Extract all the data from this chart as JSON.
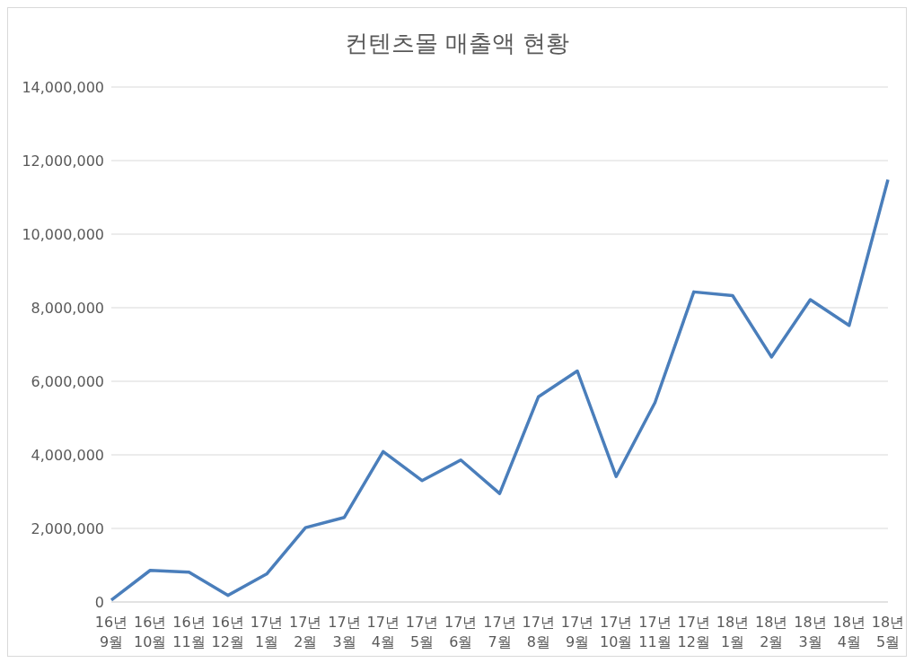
{
  "chart_data": {
    "type": "line",
    "title": "컨텐츠몰 매출액 현황",
    "categories": [
      "16년\n9월",
      "16년\n10월",
      "16년\n11월",
      "16년\n12월",
      "17년\n1월",
      "17년\n2월",
      "17년\n3월",
      "17년\n4월",
      "17년\n5월",
      "17년\n6월",
      "17년\n7월",
      "17년\n8월",
      "17년\n9월",
      "17년\n10월",
      "17년\n11월",
      "17년\n12월",
      "18년\n1월",
      "18년\n2월",
      "18년\n3월",
      "18년\n4월",
      "18년\n5월"
    ],
    "series": [
      {
        "color": "#4a7ebb",
        "values": [
          50000,
          860000,
          810000,
          180000,
          760000,
          2020000,
          2300000,
          4090000,
          3300000,
          3860000,
          2950000,
          5580000,
          6280000,
          3410000,
          5420000,
          8430000,
          8330000,
          6660000,
          8220000,
          7520000,
          11480000
        ]
      }
    ],
    "ylim": [
      0,
      14000000
    ],
    "yticks": [
      0,
      {
        "value": 2000000,
        "label": "2,000,000"
      },
      {
        "value": 4000000,
        "label": "4,000,000"
      },
      {
        "value": 6000000,
        "label": "6,000,000"
      },
      {
        "value": 8000000,
        "label": "8,000,000"
      },
      {
        "value": 10000000,
        "label": "10,000,000"
      },
      {
        "value": 12000000,
        "label": "12,000,000"
      },
      {
        "value": 14000000,
        "label": "14,000,000"
      }
    ],
    "grid": "y",
    "legend": false,
    "marker": "none",
    "line_style": "solid"
  }
}
